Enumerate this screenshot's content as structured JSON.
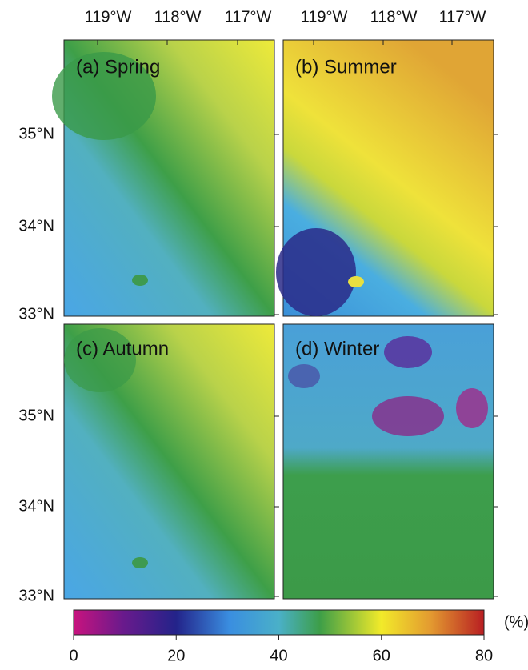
{
  "panels": [
    {
      "label": "(a) Spring"
    },
    {
      "label": "(b) Summer"
    },
    {
      "label": "(c) Autumn"
    },
    {
      "label": "(d) Winter"
    }
  ],
  "lon_ticks": [
    "119°W",
    "118°W",
    "117°W"
  ],
  "lat_ticks": [
    "35°N",
    "34°N",
    "33°N"
  ],
  "colorbar": {
    "lim": [
      0,
      80
    ],
    "ticks": [
      0,
      20,
      40,
      60,
      80
    ],
    "unit": "(%)"
  }
}
